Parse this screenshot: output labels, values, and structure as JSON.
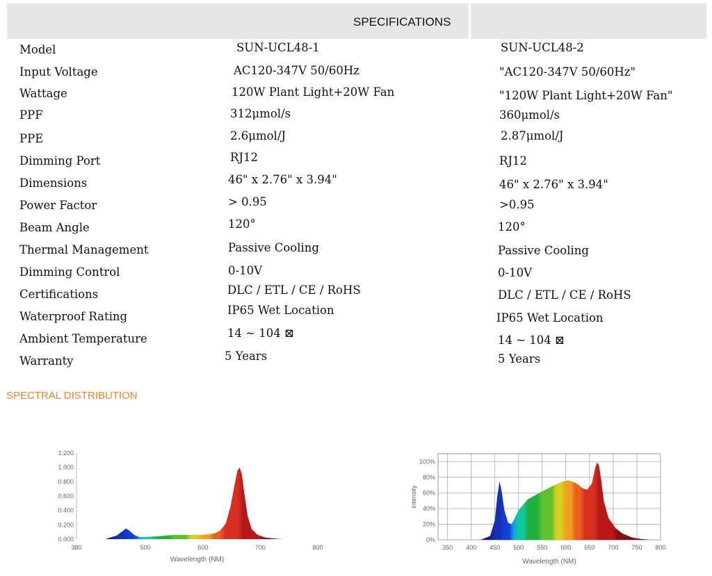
{
  "specs": {
    "title": "SPECIFICATIONS",
    "rows": [
      {
        "label": "Model",
        "v1": "SUN-UCL48-1",
        "v2": "SUN-UCL48-2"
      },
      {
        "label": "Input Voltage",
        "v1": "AC120-347V 50/60Hz",
        "v2": "\"AC120-347V 50/60Hz\""
      },
      {
        "label": "Wattage",
        "v1": "120W Plant Light+20W Fan",
        "v2": "\"120W Plant Light+20W Fan\""
      },
      {
        "label": "PPF",
        "v1": "312μmol/s",
        "v2": "360μmol/s"
      },
      {
        "label": "PPE",
        "v1": "2.6μmol/J",
        "v2": "2.87μmol/J"
      },
      {
        "label": "Dimming Port",
        "v1": "RJ12",
        "v2": "RJ12"
      },
      {
        "label": "Dimensions",
        "v1": "46\" x 2.76\" x 3.94\"",
        "v2": "46\" x 2.76\" x 3.94\""
      },
      {
        "label": "Power Factor",
        "v1": "> 0.95",
        "v2": ">0.95"
      },
      {
        "label": "Beam Angle",
        "v1": "120°",
        "v2": "120°"
      },
      {
        "label": "Thermal Management",
        "v1": "Passive Cooling",
        "v2": "Passive Cooling"
      },
      {
        "label": "Dimming Control",
        "v1": "0-10V",
        "v2": "0-10V"
      },
      {
        "label": "Certifications",
        "v1": "DLC / ETL / CE / RoHS",
        "v2": "DLC / ETL / CE / RoHS"
      },
      {
        "label": "Waterproof Rating",
        "v1": "IP65 Wet Location",
        "v2": "IP65 Wet Location"
      },
      {
        "label": "Ambient Temperature",
        "v1": "14 ~ 104 ⊠",
        "v2": "14 ~ 104 ⊠"
      },
      {
        "label": "Warranty",
        "v1": "5 Years",
        "v2": "5 Years"
      }
    ]
  },
  "spectral": {
    "title": "SPECTRAL DISTRIBUTION"
  },
  "chart_data": [
    {
      "type": "area",
      "xlabel": "Wavelength  (NM)",
      "ylabel": "",
      "xlim": [
        380,
        800
      ],
      "ylim": [
        0,
        1.2
      ],
      "x_ticks": [
        "380",
        "500",
        "600",
        "700",
        "800"
      ],
      "y_ticks": [
        "0.000",
        "0.200",
        "0.400",
        "0.600",
        "0.800",
        "1.000",
        "1.200"
      ],
      "grid": false,
      "x": [
        430,
        450,
        460,
        466,
        472,
        480,
        490,
        500,
        520,
        550,
        580,
        600,
        620,
        630,
        640,
        648,
        655,
        660,
        664,
        668,
        672,
        678,
        685,
        695,
        710,
        730,
        740
      ],
      "y": [
        0.0,
        0.05,
        0.11,
        0.15,
        0.12,
        0.06,
        0.03,
        0.03,
        0.04,
        0.06,
        0.06,
        0.06,
        0.08,
        0.12,
        0.22,
        0.45,
        0.75,
        0.95,
        1.0,
        0.9,
        0.65,
        0.32,
        0.14,
        0.06,
        0.02,
        0.005,
        0.0
      ]
    },
    {
      "type": "area",
      "xlabel": "Wavelength  (NM)",
      "ylabel": "intensity",
      "xlim": [
        330,
        800
      ],
      "ylim": [
        0,
        110
      ],
      "x_ticks": [
        "350",
        "400",
        "450",
        "500",
        "550",
        "600",
        "650",
        "700",
        "750",
        "800"
      ],
      "y_ticks": [
        "0%",
        "20%",
        "40%",
        "60%",
        "80%",
        "100%"
      ],
      "grid": true,
      "x": [
        420,
        440,
        450,
        455,
        460,
        465,
        470,
        478,
        485,
        490,
        500,
        520,
        550,
        570,
        590,
        605,
        620,
        635,
        645,
        655,
        662,
        666,
        670,
        675,
        680,
        690,
        705,
        720,
        740,
        760,
        780
      ],
      "y": [
        0,
        5,
        25,
        55,
        75,
        60,
        38,
        22,
        20,
        25,
        38,
        52,
        62,
        68,
        74,
        76,
        73,
        66,
        64,
        72,
        92,
        99,
        95,
        75,
        50,
        28,
        15,
        8,
        3,
        1,
        0
      ]
    }
  ]
}
